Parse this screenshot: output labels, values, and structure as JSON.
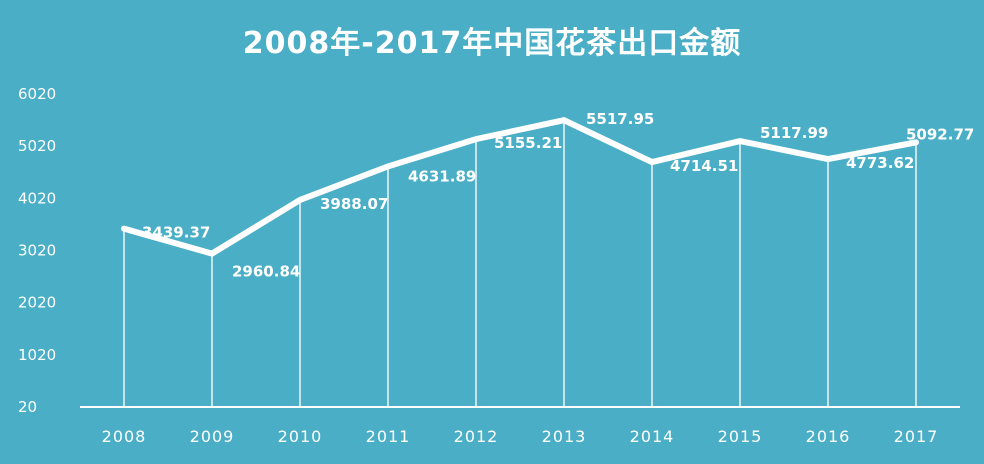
{
  "chart_data": {
    "type": "line",
    "title": "2008年-2017年中国花茶出口金额",
    "xlabel": "",
    "ylabel": "",
    "x": [
      "2008",
      "2009",
      "2010",
      "2011",
      "2012",
      "2013",
      "2014",
      "2015",
      "2016",
      "2017"
    ],
    "series": [
      {
        "values": [
          3439.37,
          2960.84,
          3988.07,
          4631.89,
          5155.21,
          5517.95,
          4714.51,
          5117.99,
          4773.62,
          5092.77
        ],
        "labels": [
          "3439.37",
          "2960.84",
          "3988.07",
          "4631.89",
          "5155.21",
          "5517.95",
          "4714.51",
          "5117.99",
          "4773.62",
          "5092.77"
        ]
      }
    ],
    "yticks": [
      "20",
      "1020",
      "2020",
      "3020",
      "4020",
      "5020",
      "6020"
    ],
    "ylim": [
      20,
      6020
    ],
    "grid": false,
    "drop_lines": true,
    "colors": {
      "background": "#4aafc6",
      "line": "#ffffff",
      "text": "#ffffff"
    }
  }
}
